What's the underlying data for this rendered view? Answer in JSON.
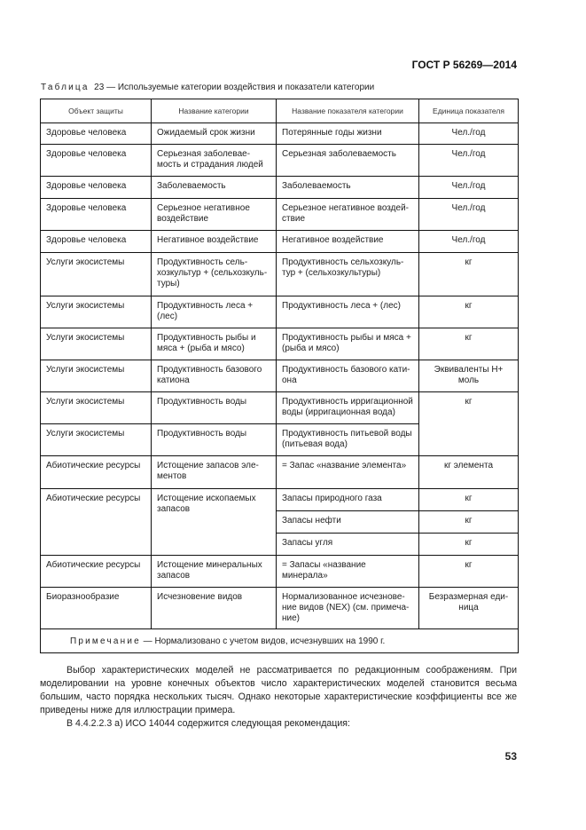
{
  "header": {
    "doc_id": "ГОСТ Р 56269—2014"
  },
  "caption": {
    "label": "Таблица",
    "text": "23 — Используемые категории воздействия и показатели категории"
  },
  "table": {
    "columns": [
      "Объект защиты",
      "Название категории",
      "Название показателя категории",
      "Единица показателя"
    ],
    "rows": [
      [
        "Здоровье человека",
        "Ожидаемый срок жизни",
        "Потерянные годы жизни",
        "Чел./год"
      ],
      [
        "Здоровье человека",
        "Серьезная заболевае-мость и страдания людей",
        "Серьезная заболеваемость",
        "Чел./год"
      ],
      [
        "Здоровье человека",
        "Заболеваемость",
        "Заболеваемость",
        "Чел./год"
      ],
      [
        "Здоровье человека",
        "Серьезное негативное воздействие",
        "Серьезное негативное воздей-ствие",
        "Чел./год"
      ],
      [
        "Здоровье человека",
        "Негативное воздействие",
        "Негативное воздействие",
        "Чел./год"
      ],
      [
        "Услуги экосистемы",
        "Продуктивность сель-хозкультур + (сельхозкуль-туры)",
        "Продуктивность сельхозкуль-тур + (сельхозкультуры)",
        "кг"
      ],
      [
        "Услуги экосистемы",
        "Продуктивность леса +(лес)",
        "Продуктивность леса + (лес)",
        "кг"
      ],
      [
        "Услуги экосистемы",
        "Продуктивность рыбы и мяса + (рыба и мясо)",
        "Продуктивность рыбы и мяса + (рыба и мясо)",
        "кг"
      ],
      [
        "Услуги экосистемы",
        "Продуктивность базового катиона",
        "Продуктивность базового кати-она",
        "Эквиваленты H+ моль"
      ],
      [
        "Услуги экосистемы",
        "Продуктивность воды",
        "Продуктивность ирригационной воды (ирригационная вода)",
        "кг"
      ],
      [
        "Услуги экосистемы",
        "Продуктивность воды",
        "Продуктивность питьевой воды (питьевая вода)"
      ],
      [
        "Абиотические ресурсы",
        "Истощение запасов эле-ментов",
        "= Запас «название элемента»",
        "кг элемента"
      ],
      [
        "Абиотические ресурсы",
        "Истощение ископаемых запасов",
        "Запасы природного газа",
        "кг"
      ],
      [
        "Запасы нефти",
        "кг"
      ],
      [
        "Запасы угля",
        "кг"
      ],
      [
        "Абиотические ресурсы",
        "Истощение минеральных запасов",
        "= Запасы «название минерала»",
        "кг"
      ],
      [
        "Биоразнообразие",
        "Исчезновение видов",
        "Нормализованное исчезнове-ние видов (NEX) (см. примеча-ние)",
        "Безразмерная еди-ница"
      ]
    ],
    "note_label": "Примечание",
    "note_text": "— Нормализовано с учетом видов, исчезнувших на 1990 г."
  },
  "body": {
    "p1": "Выбор характеристических моделей не рассматривается по редакционным соображениям. При моделировании на уровне конечных объектов число характеристических моделей становится весьма большим, часто порядка нескольких тысяч. Однако некоторые характеристические коэффициенты все же приведены ниже для иллюстрации примера.",
    "p2": "В 4.4.2.2.3 а) ИСО 14044 содержится следующая рекомендация:"
  },
  "page_number": "53"
}
